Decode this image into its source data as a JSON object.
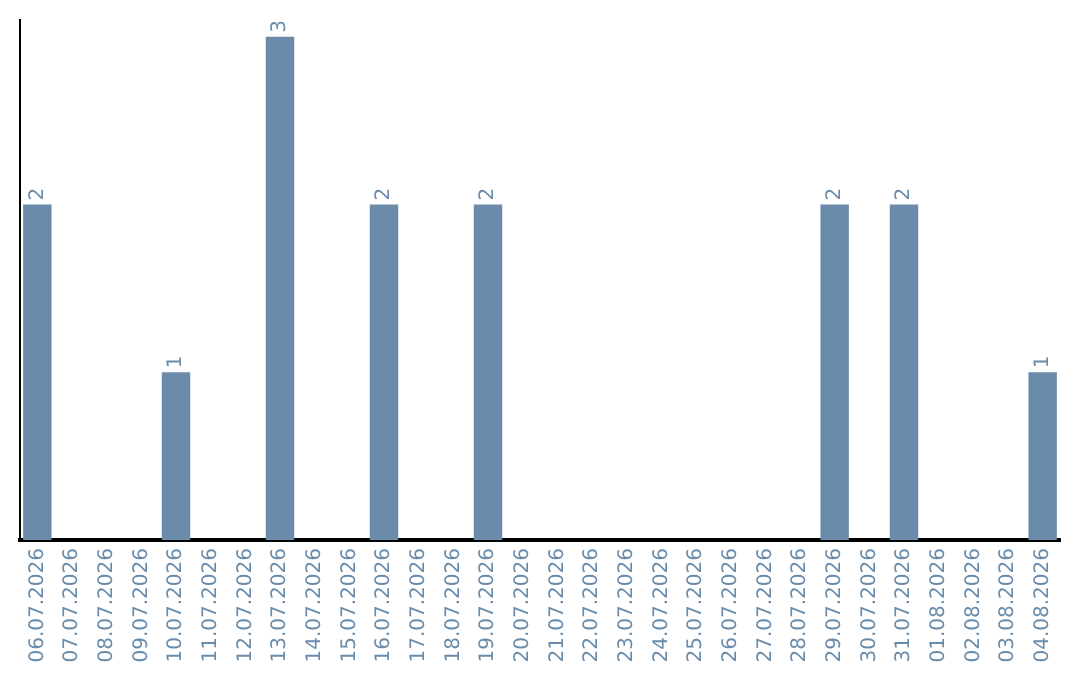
{
  "chart_data": {
    "type": "bar",
    "categories": [
      "06.07.2026",
      "07.07.2026",
      "08.07.2026",
      "09.07.2026",
      "10.07.2026",
      "11.07.2026",
      "12.07.2026",
      "13.07.2026",
      "14.07.2026",
      "15.07.2026",
      "16.07.2026",
      "17.07.2026",
      "18.07.2026",
      "19.07.2026",
      "20.07.2026",
      "21.07.2026",
      "22.07.2026",
      "23.07.2026",
      "24.07.2026",
      "25.07.2026",
      "26.07.2026",
      "27.07.2026",
      "28.07.2026",
      "29.07.2026",
      "30.07.2026",
      "31.07.2026",
      "01.08.2026",
      "02.08.2026",
      "03.08.2026",
      "04.08.2026"
    ],
    "values": [
      2,
      0,
      0,
      0,
      1,
      0,
      0,
      3,
      0,
      0,
      2,
      0,
      0,
      2,
      0,
      0,
      0,
      0,
      0,
      0,
      0,
      0,
      0,
      2,
      0,
      2,
      0,
      0,
      0,
      1
    ],
    "value_labels": [
      "2",
      null,
      null,
      null,
      "1",
      null,
      null,
      "3",
      null,
      null,
      "2",
      null,
      null,
      "2",
      null,
      null,
      null,
      null,
      null,
      null,
      null,
      null,
      null,
      "2",
      null,
      "2",
      null,
      null,
      null,
      "1"
    ],
    "color": "#6a8caa",
    "ylim": [
      0,
      3.1
    ],
    "tick_labels": "x",
    "grid": false,
    "legend": false
  }
}
